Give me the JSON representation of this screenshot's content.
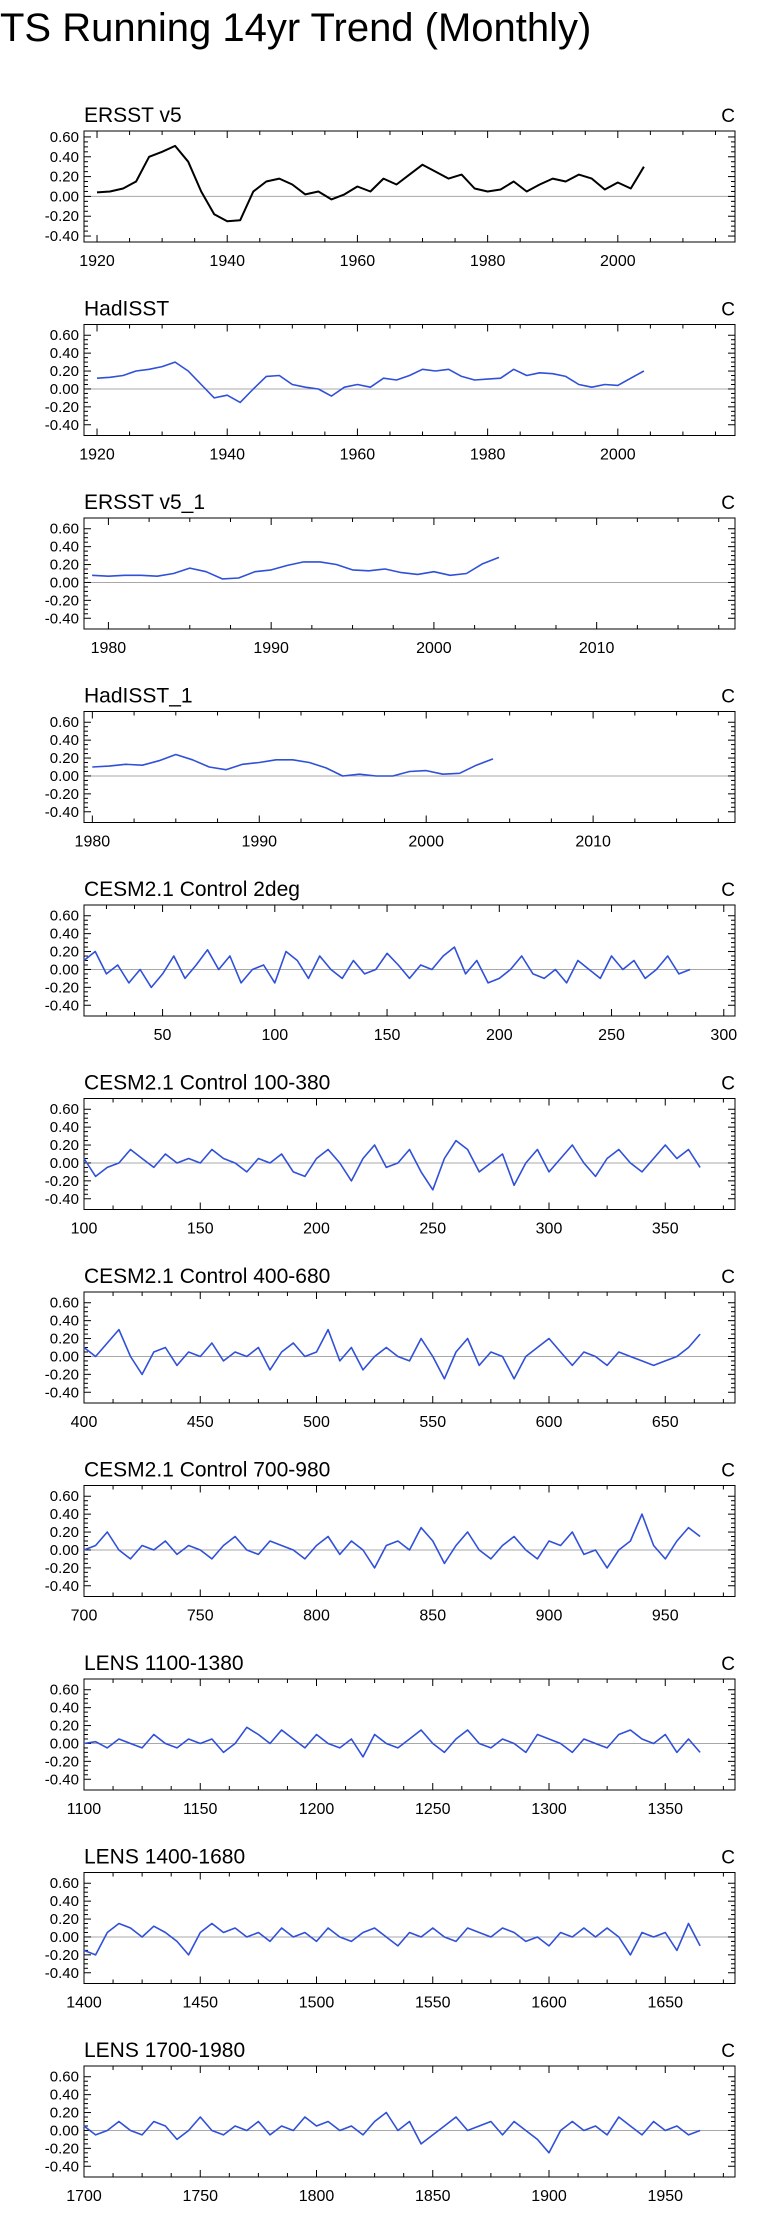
{
  "title": "TS Running 14yr Trend (Monthly)",
  "colors": {
    "observed": "#000000",
    "blue": "#3050d8",
    "zero_line": "#a8a8a8",
    "axes": "#000000"
  },
  "chart_data": [
    {
      "type": "line",
      "title": "ERSST v5",
      "units": "C",
      "color": "#000000",
      "xlim": [
        1918,
        2018
      ],
      "ylim": [
        -0.46,
        0.66
      ],
      "xticks": [
        1920,
        1940,
        1960,
        1980,
        2000
      ],
      "yticks": [
        -0.4,
        -0.2,
        0.0,
        0.2,
        0.4,
        0.6
      ],
      "x": [
        1920,
        1922,
        1924,
        1926,
        1928,
        1930,
        1932,
        1934,
        1936,
        1938,
        1940,
        1942,
        1944,
        1946,
        1948,
        1950,
        1952,
        1954,
        1956,
        1958,
        1960,
        1962,
        1964,
        1966,
        1968,
        1970,
        1972,
        1974,
        1976,
        1978,
        1980,
        1982,
        1984,
        1986,
        1988,
        1990,
        1992,
        1994,
        1996,
        1998,
        2000,
        2002,
        2004
      ],
      "y": [
        0.04,
        0.05,
        0.08,
        0.15,
        0.4,
        0.45,
        0.51,
        0.35,
        0.05,
        -0.18,
        -0.25,
        -0.24,
        0.05,
        0.15,
        0.18,
        0.12,
        0.02,
        0.05,
        -0.03,
        0.02,
        0.1,
        0.05,
        0.18,
        0.12,
        0.22,
        0.32,
        0.25,
        0.18,
        0.22,
        0.08,
        0.05,
        0.07,
        0.15,
        0.05,
        0.12,
        0.18,
        0.15,
        0.22,
        0.18,
        0.07,
        0.14,
        0.08,
        0.3
      ]
    },
    {
      "type": "line",
      "title": "HadISST",
      "units": "C",
      "color": "#3050d8",
      "xlim": [
        1918,
        2018
      ],
      "ylim": [
        -0.52,
        0.72
      ],
      "xticks": [
        1920,
        1940,
        1960,
        1980,
        2000
      ],
      "yticks": [
        -0.4,
        -0.2,
        0.0,
        0.2,
        0.4,
        0.6
      ],
      "x": [
        1920,
        1922,
        1924,
        1926,
        1928,
        1930,
        1932,
        1934,
        1936,
        1938,
        1940,
        1942,
        1944,
        1946,
        1948,
        1950,
        1952,
        1954,
        1956,
        1958,
        1960,
        1962,
        1964,
        1966,
        1968,
        1970,
        1972,
        1974,
        1976,
        1978,
        1980,
        1982,
        1984,
        1986,
        1988,
        1990,
        1992,
        1994,
        1996,
        1998,
        2000,
        2002,
        2004
      ],
      "y": [
        0.12,
        0.13,
        0.15,
        0.2,
        0.22,
        0.25,
        0.3,
        0.2,
        0.05,
        -0.1,
        -0.07,
        -0.15,
        0.0,
        0.14,
        0.15,
        0.05,
        0.02,
        0.0,
        -0.08,
        0.02,
        0.05,
        0.02,
        0.12,
        0.1,
        0.15,
        0.22,
        0.2,
        0.22,
        0.14,
        0.1,
        0.11,
        0.12,
        0.22,
        0.15,
        0.18,
        0.17,
        0.14,
        0.05,
        0.02,
        0.05,
        0.04,
        0.12,
        0.2
      ]
    },
    {
      "type": "line",
      "title": "ERSST v5_1",
      "units": "C",
      "color": "#3050d8",
      "xlim": [
        1978.5,
        2018.5
      ],
      "ylim": [
        -0.52,
        0.72
      ],
      "xticks": [
        1980,
        1990,
        2000,
        2010
      ],
      "yticks": [
        -0.4,
        -0.2,
        0.0,
        0.2,
        0.4,
        0.6
      ],
      "x": [
        1979,
        1980,
        1981,
        1982,
        1983,
        1984,
        1985,
        1986,
        1987,
        1988,
        1989,
        1990,
        1991,
        1992,
        1993,
        1994,
        1995,
        1996,
        1997,
        1998,
        1999,
        2000,
        2001,
        2002,
        2003,
        2004
      ],
      "y": [
        0.08,
        0.07,
        0.08,
        0.08,
        0.07,
        0.1,
        0.16,
        0.12,
        0.04,
        0.05,
        0.12,
        0.14,
        0.19,
        0.23,
        0.23,
        0.2,
        0.14,
        0.13,
        0.15,
        0.11,
        0.09,
        0.12,
        0.08,
        0.1,
        0.21,
        0.28
      ]
    },
    {
      "type": "line",
      "title": "HadISST_1",
      "units": "C",
      "color": "#3050d8",
      "xlim": [
        1979.5,
        2018.5
      ],
      "ylim": [
        -0.52,
        0.72
      ],
      "xticks": [
        1980,
        1990,
        2000,
        2010
      ],
      "yticks": [
        -0.4,
        -0.2,
        0.0,
        0.2,
        0.4,
        0.6
      ],
      "x": [
        1980,
        1981,
        1982,
        1983,
        1984,
        1985,
        1986,
        1987,
        1988,
        1989,
        1990,
        1991,
        1992,
        1993,
        1994,
        1995,
        1996,
        1997,
        1998,
        1999,
        2000,
        2001,
        2002,
        2003,
        2004
      ],
      "y": [
        0.1,
        0.11,
        0.13,
        0.12,
        0.17,
        0.24,
        0.18,
        0.1,
        0.07,
        0.13,
        0.15,
        0.18,
        0.18,
        0.15,
        0.09,
        0.0,
        0.02,
        0.0,
        0.0,
        0.05,
        0.06,
        0.02,
        0.03,
        0.12,
        0.19
      ]
    },
    {
      "type": "line",
      "title": "CESM2.1 Control 2deg",
      "units": "C",
      "color": "#3050d8",
      "xlim": [
        15,
        305
      ],
      "ylim": [
        -0.52,
        0.72
      ],
      "xticks": [
        50,
        100,
        150,
        200,
        250,
        300
      ],
      "yticks": [
        -0.4,
        -0.2,
        0.0,
        0.2,
        0.4,
        0.6
      ],
      "x": [
        15,
        20,
        25,
        30,
        35,
        40,
        45,
        50,
        55,
        60,
        65,
        70,
        75,
        80,
        85,
        90,
        95,
        100,
        105,
        110,
        115,
        120,
        125,
        130,
        135,
        140,
        145,
        150,
        155,
        160,
        165,
        170,
        175,
        180,
        185,
        190,
        195,
        200,
        205,
        210,
        215,
        220,
        225,
        230,
        235,
        240,
        245,
        250,
        255,
        260,
        265,
        270,
        275,
        280,
        285
      ],
      "y": [
        0.1,
        0.2,
        -0.05,
        0.05,
        -0.15,
        0.0,
        -0.2,
        -0.05,
        0.15,
        -0.1,
        0.05,
        0.22,
        0.0,
        0.15,
        -0.15,
        0.0,
        0.05,
        -0.15,
        0.2,
        0.1,
        -0.1,
        0.15,
        0.0,
        -0.1,
        0.1,
        -0.05,
        0.0,
        0.18,
        0.05,
        -0.1,
        0.05,
        0.0,
        0.15,
        0.25,
        -0.05,
        0.1,
        -0.15,
        -0.1,
        0.0,
        0.15,
        -0.05,
        -0.1,
        0.0,
        -0.15,
        0.1,
        0.0,
        -0.1,
        0.15,
        0.0,
        0.1,
        -0.1,
        0.0,
        0.15,
        -0.05,
        0.0
      ]
    },
    {
      "type": "line",
      "title": "CESM2.1 Control 100-380",
      "units": "C",
      "color": "#3050d8",
      "xlim": [
        100,
        380
      ],
      "ylim": [
        -0.52,
        0.72
      ],
      "xticks": [
        100,
        150,
        200,
        250,
        300,
        350
      ],
      "yticks": [
        -0.4,
        -0.2,
        0.0,
        0.2,
        0.4,
        0.6
      ],
      "x": [
        100,
        105,
        110,
        115,
        120,
        125,
        130,
        135,
        140,
        145,
        150,
        155,
        160,
        165,
        170,
        175,
        180,
        185,
        190,
        195,
        200,
        205,
        210,
        215,
        220,
        225,
        230,
        235,
        240,
        245,
        250,
        255,
        260,
        265,
        270,
        275,
        280,
        285,
        290,
        295,
        300,
        305,
        310,
        315,
        320,
        325,
        330,
        335,
        340,
        345,
        350,
        355,
        360,
        365
      ],
      "y": [
        0.05,
        -0.15,
        -0.05,
        0.0,
        0.15,
        0.05,
        -0.05,
        0.1,
        0.0,
        0.05,
        0.0,
        0.15,
        0.05,
        0.0,
        -0.1,
        0.05,
        0.0,
        0.1,
        -0.1,
        -0.15,
        0.05,
        0.15,
        0.0,
        -0.2,
        0.05,
        0.2,
        -0.05,
        0.0,
        0.15,
        -0.1,
        -0.3,
        0.05,
        0.25,
        0.15,
        -0.1,
        0.0,
        0.1,
        -0.25,
        0.0,
        0.15,
        -0.1,
        0.05,
        0.2,
        0.0,
        -0.15,
        0.05,
        0.15,
        0.0,
        -0.1,
        0.05,
        0.2,
        0.05,
        0.15,
        -0.05
      ]
    },
    {
      "type": "line",
      "title": "CESM2.1 Control 400-680",
      "units": "C",
      "color": "#3050d8",
      "xlim": [
        400,
        680
      ],
      "ylim": [
        -0.52,
        0.72
      ],
      "xticks": [
        400,
        450,
        500,
        550,
        600,
        650
      ],
      "yticks": [
        -0.4,
        -0.2,
        0.0,
        0.2,
        0.4,
        0.6
      ],
      "x": [
        400,
        405,
        410,
        415,
        420,
        425,
        430,
        435,
        440,
        445,
        450,
        455,
        460,
        465,
        470,
        475,
        480,
        485,
        490,
        495,
        500,
        505,
        510,
        515,
        520,
        525,
        530,
        535,
        540,
        545,
        550,
        555,
        560,
        565,
        570,
        575,
        580,
        585,
        590,
        595,
        600,
        605,
        610,
        615,
        620,
        625,
        630,
        635,
        640,
        645,
        650,
        655,
        660,
        665
      ],
      "y": [
        0.1,
        0.0,
        0.15,
        0.3,
        0.0,
        -0.2,
        0.05,
        0.1,
        -0.1,
        0.05,
        0.0,
        0.15,
        -0.05,
        0.05,
        0.0,
        0.1,
        -0.15,
        0.05,
        0.15,
        0.0,
        0.05,
        0.3,
        -0.05,
        0.1,
        -0.15,
        0.0,
        0.1,
        0.0,
        -0.05,
        0.2,
        0.0,
        -0.25,
        0.05,
        0.2,
        -0.1,
        0.05,
        0.0,
        -0.25,
        0.0,
        0.1,
        0.2,
        0.05,
        -0.1,
        0.05,
        0.0,
        -0.1,
        0.05,
        0.0,
        -0.05,
        -0.1,
        -0.05,
        0.0,
        0.1,
        0.25
      ]
    },
    {
      "type": "line",
      "title": "CESM2.1 Control 700-980",
      "units": "C",
      "color": "#3050d8",
      "xlim": [
        700,
        980
      ],
      "ylim": [
        -0.52,
        0.72
      ],
      "xticks": [
        700,
        750,
        800,
        850,
        900,
        950
      ],
      "yticks": [
        -0.4,
        -0.2,
        0.0,
        0.2,
        0.4,
        0.6
      ],
      "x": [
        700,
        705,
        710,
        715,
        720,
        725,
        730,
        735,
        740,
        745,
        750,
        755,
        760,
        765,
        770,
        775,
        780,
        785,
        790,
        795,
        800,
        805,
        810,
        815,
        820,
        825,
        830,
        835,
        840,
        845,
        850,
        855,
        860,
        865,
        870,
        875,
        880,
        885,
        890,
        895,
        900,
        905,
        910,
        915,
        920,
        925,
        930,
        935,
        940,
        945,
        950,
        955,
        960,
        965
      ],
      "y": [
        0.0,
        0.05,
        0.2,
        0.0,
        -0.1,
        0.05,
        0.0,
        0.1,
        -0.05,
        0.05,
        0.0,
        -0.1,
        0.05,
        0.15,
        0.0,
        -0.05,
        0.1,
        0.05,
        0.0,
        -0.1,
        0.05,
        0.15,
        -0.05,
        0.1,
        0.0,
        -0.2,
        0.05,
        0.1,
        0.0,
        0.25,
        0.1,
        -0.15,
        0.05,
        0.2,
        0.0,
        -0.1,
        0.05,
        0.15,
        0.0,
        -0.1,
        0.1,
        0.05,
        0.2,
        -0.05,
        0.0,
        -0.2,
        0.0,
        0.1,
        0.4,
        0.05,
        -0.1,
        0.1,
        0.25,
        0.15
      ]
    },
    {
      "type": "line",
      "title": "LENS 1100-1380",
      "units": "C",
      "color": "#3050d8",
      "xlim": [
        1100,
        1380
      ],
      "ylim": [
        -0.52,
        0.72
      ],
      "xticks": [
        1100,
        1150,
        1200,
        1250,
        1300,
        1350
      ],
      "yticks": [
        -0.4,
        -0.2,
        0.0,
        0.2,
        0.4,
        0.6
      ],
      "x": [
        1100,
        1105,
        1110,
        1115,
        1120,
        1125,
        1130,
        1135,
        1140,
        1145,
        1150,
        1155,
        1160,
        1165,
        1170,
        1175,
        1180,
        1185,
        1190,
        1195,
        1200,
        1205,
        1210,
        1215,
        1220,
        1225,
        1230,
        1235,
        1240,
        1245,
        1250,
        1255,
        1260,
        1265,
        1270,
        1275,
        1280,
        1285,
        1290,
        1295,
        1300,
        1305,
        1310,
        1315,
        1320,
        1325,
        1330,
        1335,
        1340,
        1345,
        1350,
        1355,
        1360,
        1365
      ],
      "y": [
        0.0,
        0.02,
        -0.05,
        0.05,
        0.0,
        -0.05,
        0.1,
        0.0,
        -0.05,
        0.05,
        0.0,
        0.05,
        -0.1,
        0.0,
        0.18,
        0.1,
        0.0,
        0.15,
        0.05,
        -0.05,
        0.1,
        0.0,
        -0.05,
        0.05,
        -0.15,
        0.1,
        0.0,
        -0.05,
        0.05,
        0.15,
        0.0,
        -0.1,
        0.05,
        0.15,
        0.0,
        -0.05,
        0.05,
        0.0,
        -0.1,
        0.1,
        0.05,
        0.0,
        -0.1,
        0.05,
        0.0,
        -0.05,
        0.1,
        0.15,
        0.05,
        0.0,
        0.1,
        -0.1,
        0.05,
        -0.1
      ]
    },
    {
      "type": "line",
      "title": "LENS 1400-1680",
      "units": "C",
      "color": "#3050d8",
      "xlim": [
        1400,
        1680
      ],
      "ylim": [
        -0.52,
        0.72
      ],
      "xticks": [
        1400,
        1450,
        1500,
        1550,
        1600,
        1650
      ],
      "yticks": [
        -0.4,
        -0.2,
        0.0,
        0.2,
        0.4,
        0.6
      ],
      "x": [
        1400,
        1405,
        1410,
        1415,
        1420,
        1425,
        1430,
        1435,
        1440,
        1445,
        1450,
        1455,
        1460,
        1465,
        1470,
        1475,
        1480,
        1485,
        1490,
        1495,
        1500,
        1505,
        1510,
        1515,
        1520,
        1525,
        1530,
        1535,
        1540,
        1545,
        1550,
        1555,
        1560,
        1565,
        1570,
        1575,
        1580,
        1585,
        1590,
        1595,
        1600,
        1605,
        1610,
        1615,
        1620,
        1625,
        1630,
        1635,
        1640,
        1645,
        1650,
        1655,
        1660,
        1665
      ],
      "y": [
        -0.15,
        -0.2,
        0.05,
        0.15,
        0.1,
        0.0,
        0.12,
        0.05,
        -0.05,
        -0.2,
        0.05,
        0.15,
        0.05,
        0.1,
        0.0,
        0.05,
        -0.05,
        0.1,
        0.0,
        0.05,
        -0.05,
        0.1,
        0.0,
        -0.05,
        0.05,
        0.1,
        0.0,
        -0.1,
        0.05,
        0.0,
        0.1,
        0.0,
        -0.05,
        0.1,
        0.05,
        0.0,
        0.1,
        0.05,
        -0.05,
        0.0,
        -0.1,
        0.05,
        0.0,
        0.1,
        0.0,
        0.1,
        0.0,
        -0.2,
        0.05,
        0.0,
        0.05,
        -0.15,
        0.15,
        -0.1
      ]
    },
    {
      "type": "line",
      "title": "LENS 1700-1980",
      "units": "C",
      "color": "#3050d8",
      "xlim": [
        1700,
        1980
      ],
      "ylim": [
        -0.52,
        0.72
      ],
      "xticks": [
        1700,
        1750,
        1800,
        1850,
        1900,
        1950
      ],
      "yticks": [
        -0.4,
        -0.2,
        0.0,
        0.2,
        0.4,
        0.6
      ],
      "x": [
        1700,
        1705,
        1710,
        1715,
        1720,
        1725,
        1730,
        1735,
        1740,
        1745,
        1750,
        1755,
        1760,
        1765,
        1770,
        1775,
        1780,
        1785,
        1790,
        1795,
        1800,
        1805,
        1810,
        1815,
        1820,
        1825,
        1830,
        1835,
        1840,
        1845,
        1850,
        1855,
        1860,
        1865,
        1870,
        1875,
        1880,
        1885,
        1890,
        1895,
        1900,
        1905,
        1910,
        1915,
        1920,
        1925,
        1930,
        1935,
        1940,
        1945,
        1950,
        1955,
        1960,
        1965
      ],
      "y": [
        0.05,
        -0.05,
        0.0,
        0.1,
        0.0,
        -0.05,
        0.1,
        0.05,
        -0.1,
        0.0,
        0.15,
        0.0,
        -0.05,
        0.05,
        0.0,
        0.1,
        -0.05,
        0.05,
        0.0,
        0.15,
        0.05,
        0.1,
        0.0,
        0.05,
        -0.05,
        0.1,
        0.2,
        0.0,
        0.1,
        -0.15,
        -0.05,
        0.05,
        0.15,
        0.0,
        0.05,
        0.1,
        -0.05,
        0.1,
        0.0,
        -0.1,
        -0.25,
        0.0,
        0.1,
        0.0,
        0.05,
        -0.05,
        0.15,
        0.05,
        -0.05,
        0.1,
        0.0,
        0.05,
        -0.05,
        0.0
      ]
    }
  ]
}
